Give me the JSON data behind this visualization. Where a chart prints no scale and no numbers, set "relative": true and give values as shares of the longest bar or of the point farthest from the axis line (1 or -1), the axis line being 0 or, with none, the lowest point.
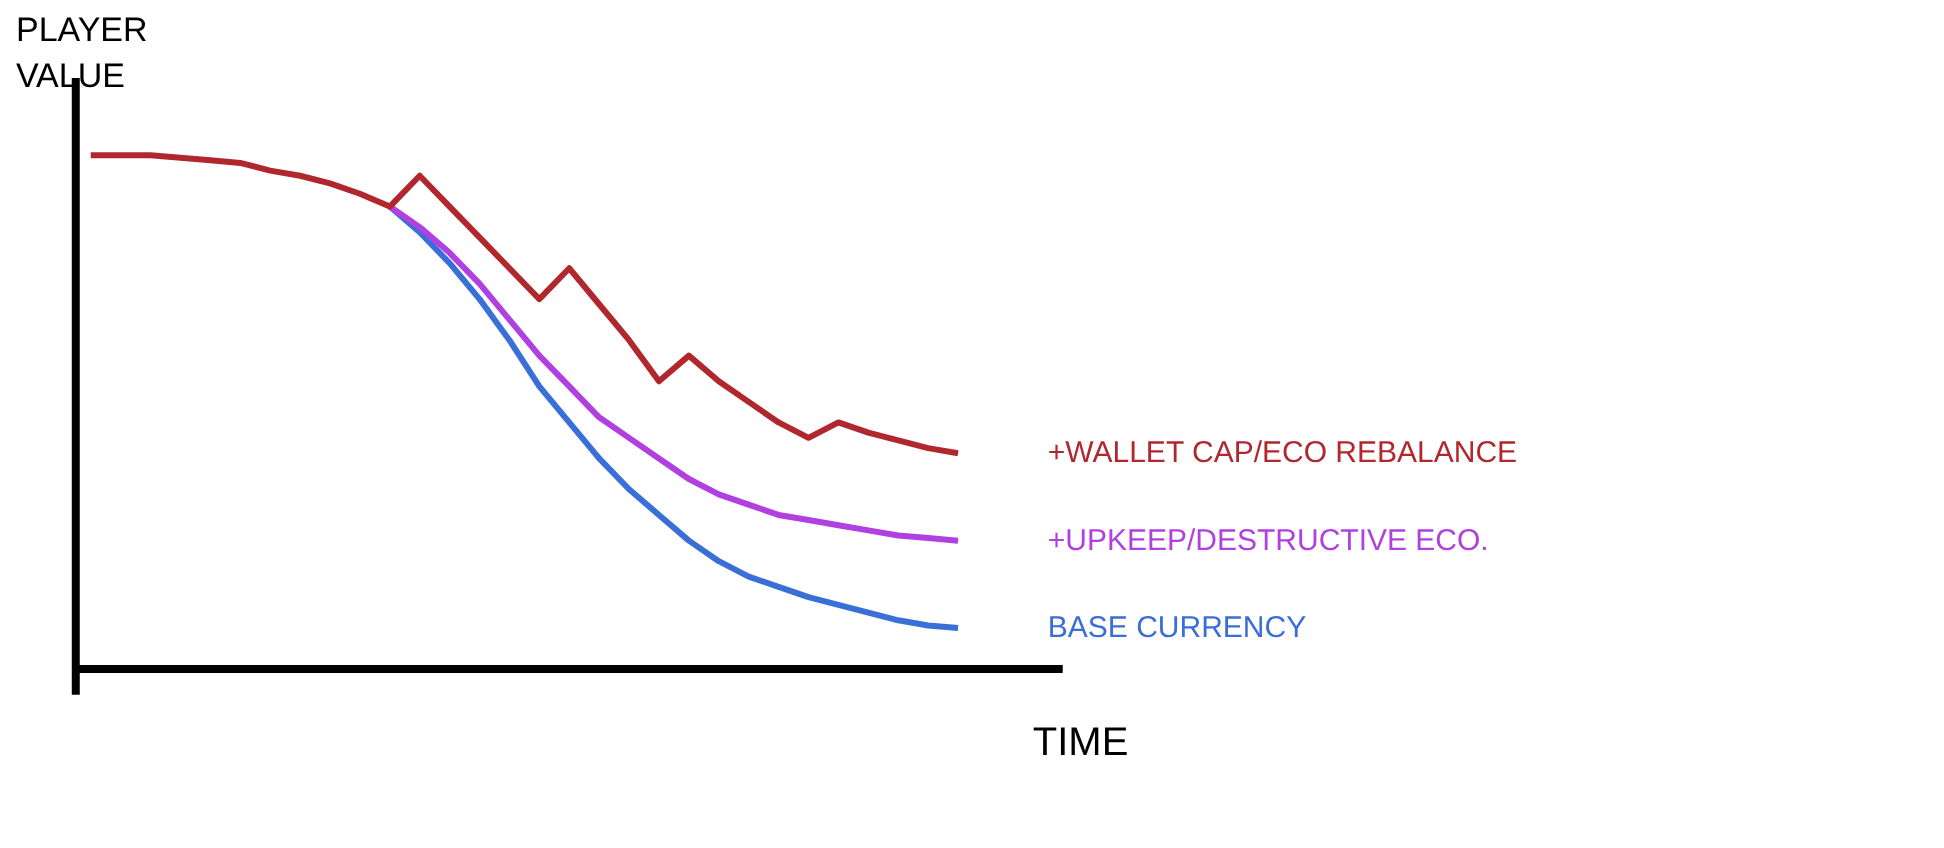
{
  "chart_data": {
    "type": "line",
    "relative": true,
    "xlabel": "TIME",
    "ylabel": "PLAYER\nVALUE",
    "grid": false,
    "marker": "none",
    "line_style": "solid",
    "categories": [
      null,
      null,
      null,
      null,
      null,
      null,
      null,
      null,
      null,
      null,
      null,
      null,
      null,
      null,
      null,
      null,
      null,
      null,
      null,
      null,
      null,
      null,
      null,
      null,
      null,
      null,
      null,
      null,
      null,
      null
    ],
    "series": [
      {
        "name": "+WALLET CAP/ECO REBALANCE",
        "color": "#b0282e",
        "values": [
          1,
          1,
          1,
          0.995,
          0.99,
          0.985,
          0.97,
          0.96,
          0.945,
          0.925,
          0.9,
          0.96,
          0.9,
          0.84,
          0.78,
          0.72,
          0.78,
          0.71,
          0.64,
          0.56,
          0.61,
          0.56,
          0.52,
          0.48,
          0.45,
          0.48,
          0.46,
          0.445,
          0.43,
          0.42
        ]
      },
      {
        "name": "+UPKEEP/DESTRUCTIVE ECO.",
        "color": "#b040e0",
        "values": [
          null,
          null,
          null,
          null,
          null,
          null,
          null,
          null,
          null,
          null,
          0.9,
          0.86,
          0.81,
          0.75,
          0.68,
          0.61,
          0.55,
          0.49,
          0.45,
          0.41,
          0.37,
          0.34,
          0.32,
          0.3,
          0.29,
          0.28,
          0.27,
          0.26,
          0.255,
          0.25
        ]
      },
      {
        "name": "BASE CURRENCY",
        "color": "#3a6fd8",
        "values": [
          null,
          null,
          null,
          null,
          null,
          null,
          null,
          null,
          null,
          null,
          0.9,
          0.85,
          0.79,
          0.72,
          0.64,
          0.55,
          0.48,
          0.41,
          0.35,
          0.3,
          0.25,
          0.21,
          0.18,
          0.16,
          0.14,
          0.125,
          0.11,
          0.095,
          0.085,
          0.08
        ]
      }
    ]
  }
}
